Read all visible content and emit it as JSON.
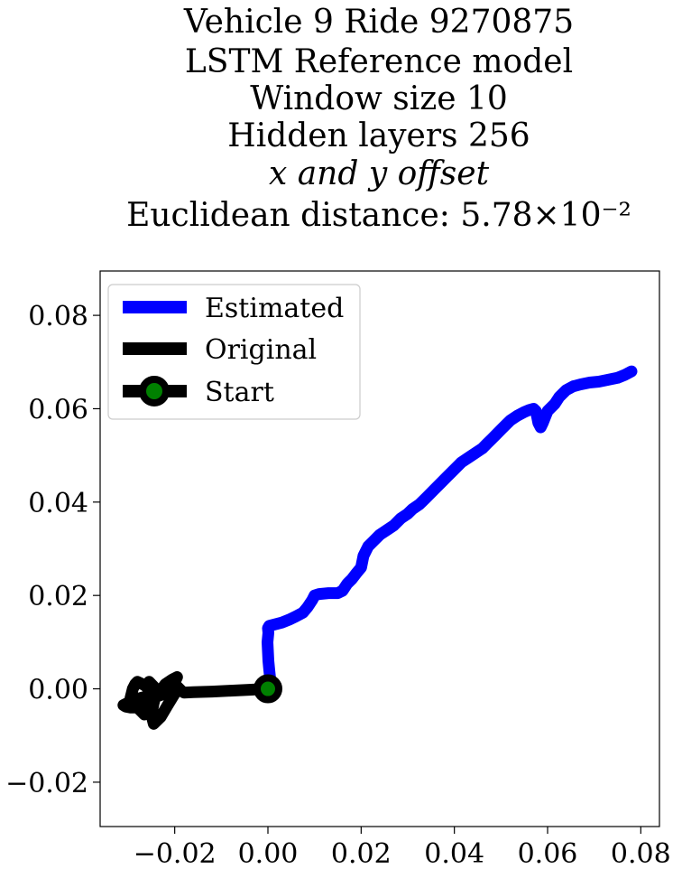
{
  "chart_data": {
    "type": "line",
    "title_lines": [
      "Vehicle 9 Ride 9270875",
      "LSTM Reference model",
      "Window size 10",
      "Hidden layers 256",
      "x and y offset",
      "Euclidean distance: 5.78×10⁻²"
    ],
    "xlabel": "",
    "ylabel": "",
    "xlim": [
      -0.036,
      0.084
    ],
    "ylim": [
      -0.0295,
      0.0895
    ],
    "x_ticks": [
      -0.02,
      0.0,
      0.02,
      0.04,
      0.06,
      0.08
    ],
    "x_tick_labels": [
      "−0.02",
      "0.00",
      "0.02",
      "0.04",
      "0.06",
      "0.08"
    ],
    "y_ticks": [
      -0.02,
      0.0,
      0.02,
      0.04,
      0.06,
      0.08
    ],
    "y_tick_labels": [
      "−0.02",
      "0.00",
      "0.02",
      "0.04",
      "0.06",
      "0.08"
    ],
    "grid": false,
    "legend_placement": "top-left",
    "series": [
      {
        "name": "Estimated",
        "color": "#0000ff",
        "x": [
          0.0,
          0.0005,
          0.0003,
          0.0001,
          0.0,
          -0.0001,
          0.0001,
          0.0,
          0.0003,
          0.0015,
          0.003,
          0.0045,
          0.006,
          0.0075,
          0.0085,
          0.0095,
          0.01,
          0.011,
          0.013,
          0.015,
          0.016,
          0.017,
          0.018,
          0.019,
          0.02,
          0.0205,
          0.0215,
          0.0225,
          0.024,
          0.0255,
          0.027,
          0.0285,
          0.03,
          0.031,
          0.0325,
          0.034,
          0.0355,
          0.037,
          0.0385,
          0.04,
          0.0415,
          0.043,
          0.0445,
          0.046,
          0.047,
          0.048,
          0.049,
          0.05,
          0.051,
          0.052,
          0.0535,
          0.055,
          0.056,
          0.057,
          0.0575,
          0.058,
          0.0585,
          0.059,
          0.06,
          0.0615,
          0.0625,
          0.064,
          0.0655,
          0.067,
          0.069,
          0.071,
          0.073,
          0.075,
          0.0765,
          0.078
        ],
        "y": [
          0.0,
          0.002,
          0.004,
          0.006,
          0.008,
          0.01,
          0.012,
          0.013,
          0.0135,
          0.0138,
          0.0142,
          0.0148,
          0.0155,
          0.0163,
          0.0175,
          0.019,
          0.02,
          0.0203,
          0.0205,
          0.0205,
          0.021,
          0.0225,
          0.0235,
          0.0248,
          0.026,
          0.0285,
          0.0305,
          0.0315,
          0.033,
          0.034,
          0.035,
          0.0365,
          0.0375,
          0.0385,
          0.0395,
          0.041,
          0.0425,
          0.044,
          0.0455,
          0.047,
          0.0485,
          0.0495,
          0.0505,
          0.0515,
          0.0525,
          0.0535,
          0.0545,
          0.0555,
          0.0565,
          0.0575,
          0.0585,
          0.0593,
          0.0597,
          0.06,
          0.0595,
          0.057,
          0.056,
          0.057,
          0.0595,
          0.061,
          0.0625,
          0.064,
          0.0648,
          0.0652,
          0.0656,
          0.0658,
          0.0662,
          0.0666,
          0.0672,
          0.068
        ]
      },
      {
        "name": "Original",
        "color": "#000000",
        "x": [
          0.0,
          -0.004,
          -0.008,
          -0.012,
          -0.016,
          -0.018,
          -0.0185,
          -0.019,
          -0.0195,
          -0.02,
          -0.0205,
          -0.0215,
          -0.023,
          -0.0245,
          -0.025,
          -0.0255,
          -0.0245,
          -0.024,
          -0.0255,
          -0.0265,
          -0.028,
          -0.0295,
          -0.029,
          -0.0285,
          -0.028,
          -0.0265,
          -0.025,
          -0.0235,
          -0.022,
          -0.021,
          -0.02,
          -0.0195,
          -0.0205,
          -0.022,
          -0.0235,
          -0.025,
          -0.0265,
          -0.028,
          -0.0295,
          -0.0305,
          -0.031,
          -0.03,
          -0.029,
          -0.0275,
          -0.0255,
          -0.024,
          -0.0245,
          -0.025,
          -0.0245,
          -0.023,
          -0.0215,
          -0.02,
          -0.019
        ],
        "y": [
          0.0,
          -0.0002,
          -0.0004,
          -0.0006,
          -0.0007,
          -0.0008,
          -0.0005,
          0.0,
          0.0005,
          0.001,
          0.0005,
          -0.0003,
          -0.0005,
          0.0,
          0.001,
          0.0015,
          0.0005,
          -0.001,
          -0.0035,
          -0.0055,
          -0.004,
          -0.002,
          0.0,
          0.001,
          0.0015,
          0.0008,
          -0.0005,
          -0.0015,
          -0.001,
          0.0,
          0.0015,
          0.0025,
          0.002,
          0.001,
          -0.001,
          -0.0025,
          -0.0035,
          -0.004,
          -0.004,
          -0.0038,
          -0.0035,
          -0.003,
          -0.0025,
          -0.002,
          -0.0015,
          -0.001,
          -0.003,
          -0.0055,
          -0.0075,
          -0.006,
          -0.0035,
          -0.001,
          0.0
        ]
      }
    ],
    "start_point": {
      "name": "Start",
      "x": 0.0,
      "y": 0.0,
      "marker_face": "#008000",
      "marker_edge": "#000000"
    }
  }
}
